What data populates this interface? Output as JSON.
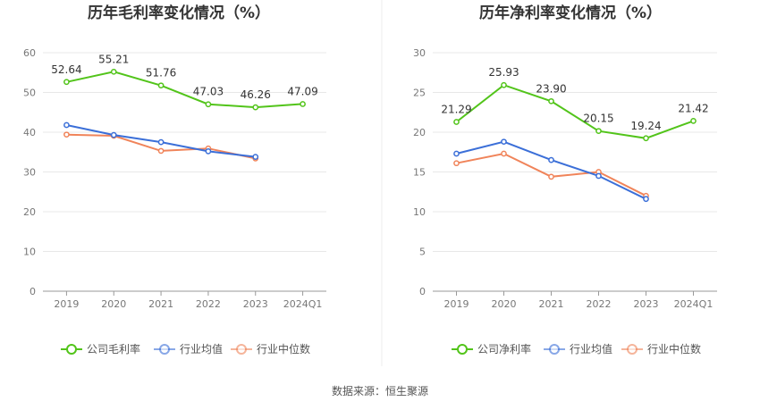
{
  "source_text": "数据来源：恒生聚源",
  "colors": {
    "company": "#52c41a",
    "avg": "#3b6fd8",
    "median": "#f0845a"
  },
  "chart_data": [
    {
      "type": "line",
      "title": "历年毛利率变化情况（%）",
      "categories": [
        "2019",
        "2020",
        "2021",
        "2022",
        "2023",
        "2024Q1"
      ],
      "yticks": [
        "0",
        "10",
        "20",
        "30",
        "40",
        "50",
        "60"
      ],
      "ylim": [
        0,
        60
      ],
      "grid": true,
      "legend_position": "bottom",
      "series": [
        {
          "name": "公司毛利率",
          "values": [
            52.64,
            55.21,
            51.76,
            47.03,
            46.26,
            47.09
          ],
          "labels": [
            "52.64",
            "55.21",
            "51.76",
            "47.03",
            "46.26",
            "47.09"
          ]
        },
        {
          "name": "行业均值",
          "values": [
            41.8,
            39.3,
            37.5,
            35.2,
            33.8,
            null
          ]
        },
        {
          "name": "行业中位数",
          "values": [
            39.4,
            39.1,
            35.3,
            35.9,
            33.4,
            null
          ]
        }
      ]
    },
    {
      "type": "line",
      "title": "历年净利率变化情况（%）",
      "categories": [
        "2019",
        "2020",
        "2021",
        "2022",
        "2023",
        "2024Q1"
      ],
      "yticks": [
        "0",
        "5",
        "10",
        "15",
        "20",
        "25",
        "30"
      ],
      "ylim": [
        0,
        30
      ],
      "grid": true,
      "legend_position": "bottom",
      "series": [
        {
          "name": "公司净利率",
          "values": [
            21.29,
            25.93,
            23.9,
            20.15,
            19.24,
            21.42
          ],
          "labels": [
            "21.29",
            "25.93",
            "23.90",
            "20.15",
            "19.24",
            "21.42"
          ]
        },
        {
          "name": "行业均值",
          "values": [
            17.3,
            18.8,
            16.5,
            14.5,
            11.6,
            null
          ]
        },
        {
          "name": "行业中位数",
          "values": [
            16.1,
            17.3,
            14.4,
            15.0,
            12.0,
            null
          ]
        }
      ]
    }
  ]
}
